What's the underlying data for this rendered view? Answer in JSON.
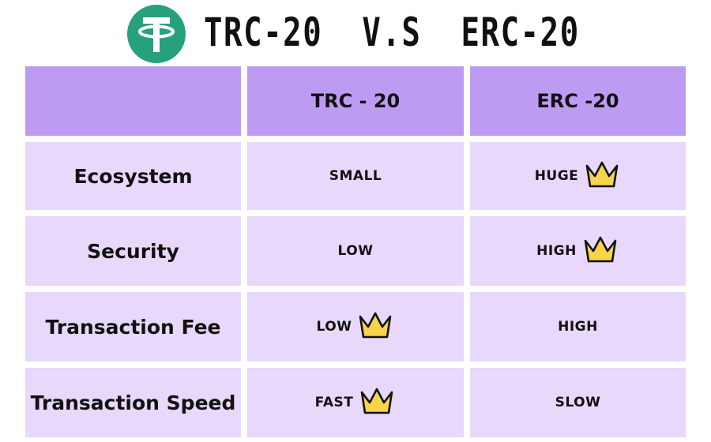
{
  "title": "TRC-20  V.S  ERC-20",
  "logo": {
    "icon": "tether-logo-icon",
    "color": "#26a17b"
  },
  "colors": {
    "header_cell": "#bd9bf2",
    "body_cell": "#e7d8fc",
    "crown": "#f8d44a"
  },
  "table": {
    "columns": [
      "",
      "TRC - 20",
      "ERC -20"
    ],
    "rows": [
      {
        "label": "Ecosystem",
        "trc": "SMALL",
        "erc": "HUGE",
        "winner": "erc"
      },
      {
        "label": "Security",
        "trc": "LOW",
        "erc": "HIGH",
        "winner": "erc"
      },
      {
        "label": "Transaction Fee",
        "trc": "LOW",
        "erc": "HIGH",
        "winner": "trc"
      },
      {
        "label": "Transaction Speed",
        "trc": "FAST",
        "erc": "SLOW",
        "winner": "trc"
      }
    ]
  }
}
